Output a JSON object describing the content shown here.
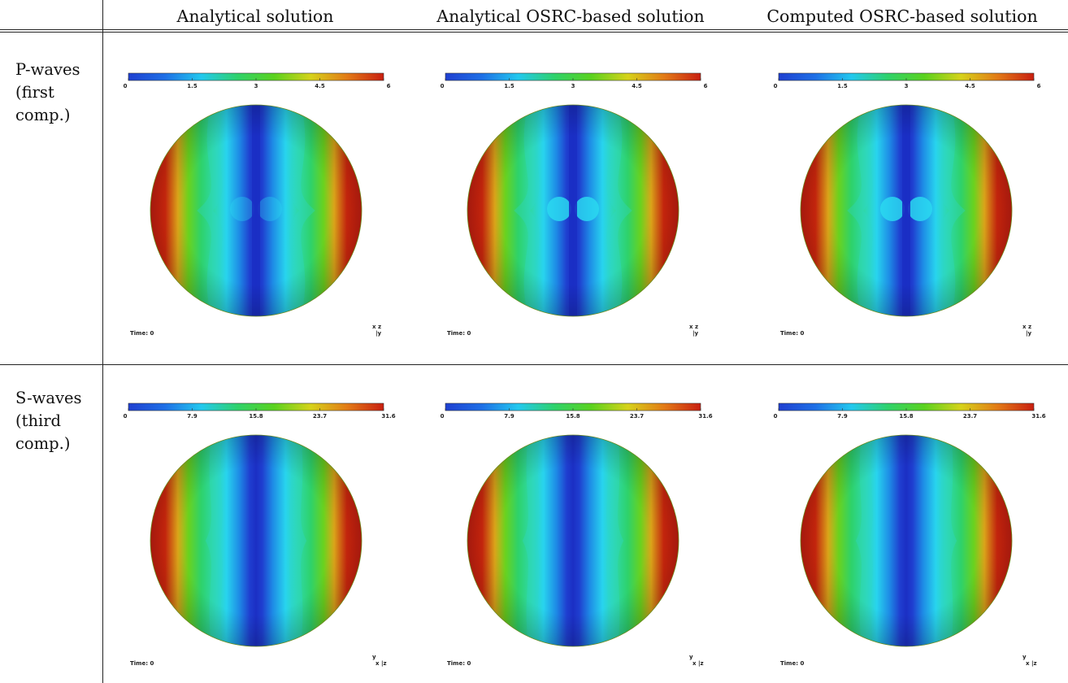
{
  "columns": [
    {
      "label": "Analytical solution"
    },
    {
      "label": "Analytical OSRC-based solution"
    },
    {
      "label": "Computed OSRC-based solution"
    }
  ],
  "rows": [
    {
      "label_lines": [
        "P-waves",
        "(first",
        "comp.)"
      ],
      "colorbar": {
        "min": 0,
        "max": 6,
        "ticks": [
          "0",
          "1.5",
          "3",
          "4.5",
          "6"
        ]
      },
      "time_label": "Time: 0",
      "axes_glyph": {
        "top": "x z",
        "bottom": "|y"
      }
    },
    {
      "label_lines": [
        "S-waves",
        "(third",
        "comp.)"
      ],
      "colorbar": {
        "min": 0,
        "max": 31.6,
        "ticks": [
          "0",
          "7.9",
          "15.8",
          "23.7",
          "31.6"
        ]
      },
      "time_label": "Time: 0",
      "axes_glyph": {
        "top": "y",
        "bottom": "x |z"
      }
    }
  ],
  "colormap": [
    "#1f3fd0",
    "#1e6fe6",
    "#22c8ee",
    "#2ed26a",
    "#5ad21e",
    "#d6d21a",
    "#e27a16",
    "#c81e10"
  ]
}
